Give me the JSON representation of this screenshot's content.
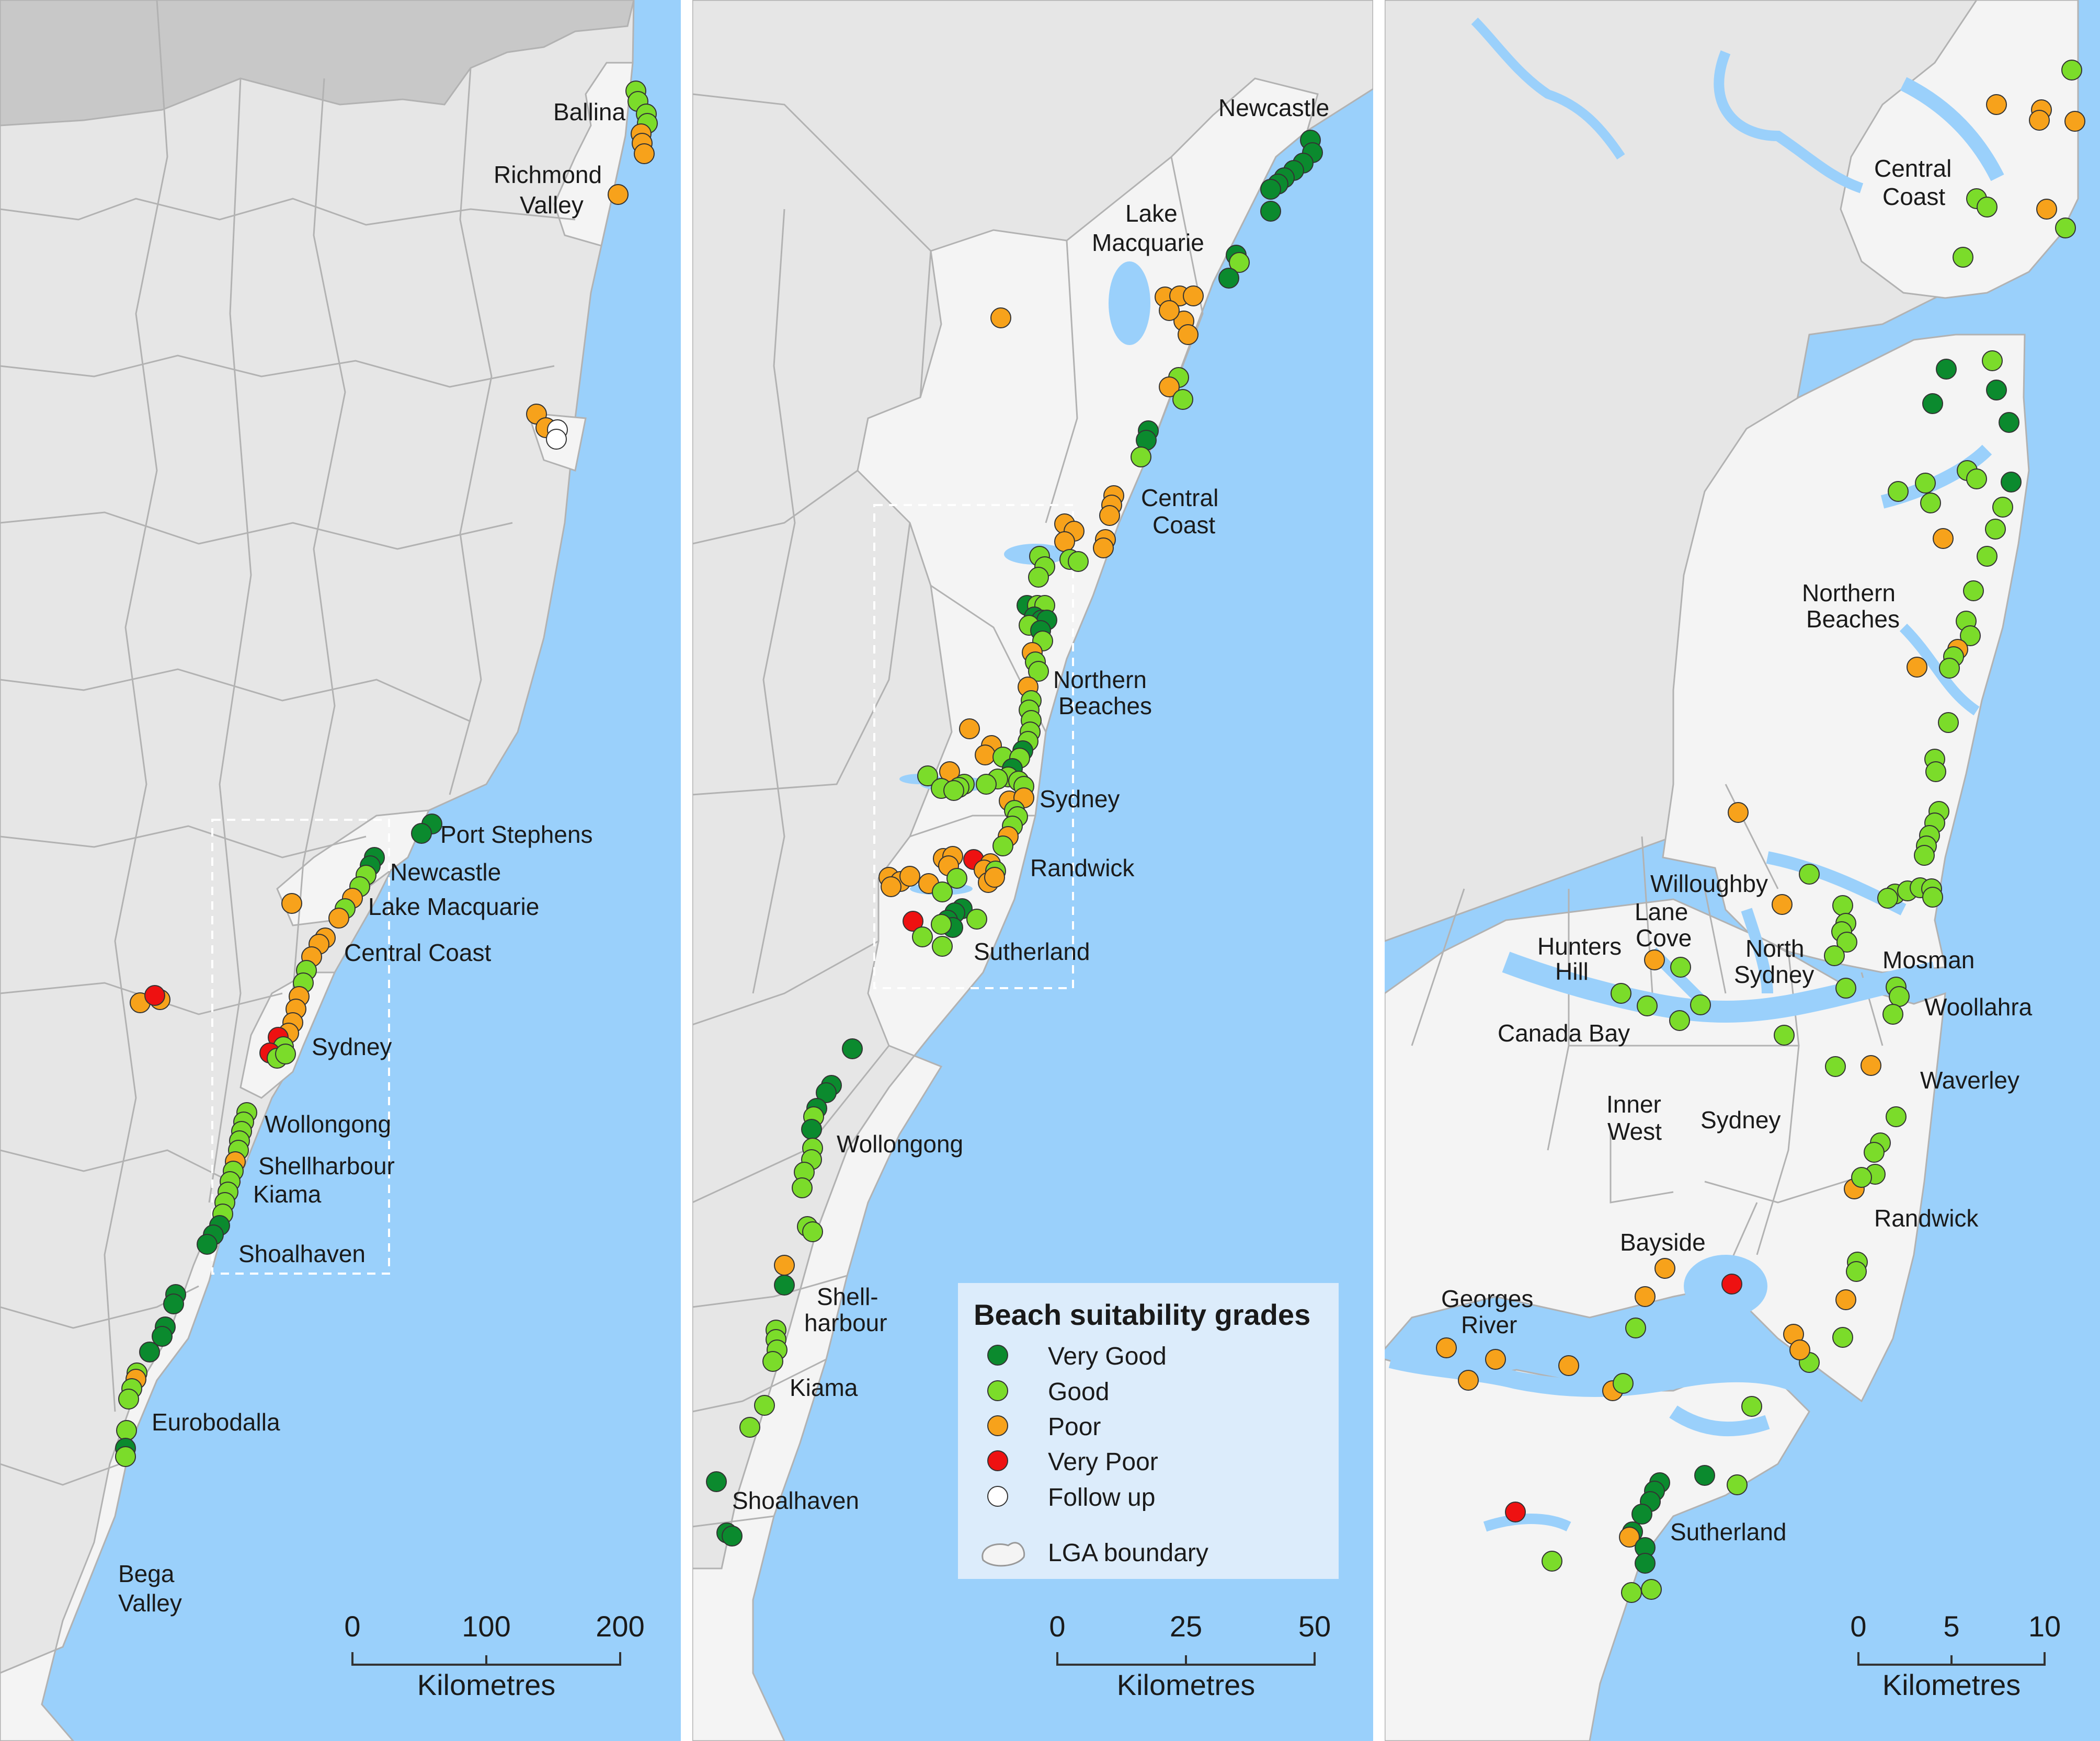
{
  "colors": {
    "sea": "#9ad0fb",
    "land_inland": "#e6e6e6",
    "land_coastal_lga": "#f4f4f4",
    "out_of_state": "#c8c8c8",
    "boundary": "#b2b2b2",
    "very_good": "#0b8a2e",
    "good": "#7bdc2a",
    "poor": "#f7a21b",
    "very_poor": "#ee1111",
    "follow_up": "#ffffff",
    "legend_bg": "#dcecfb"
  },
  "legend": {
    "title": "Beach suitability grades",
    "items": [
      {
        "label": "Very Good",
        "grade": "very_good"
      },
      {
        "label": "Good",
        "grade": "good"
      },
      {
        "label": "Poor",
        "grade": "poor"
      },
      {
        "label": "Very Poor",
        "grade": "very_poor"
      },
      {
        "label": "Follow up",
        "grade": "follow_up"
      }
    ],
    "boundary_label": "LGA boundary"
  },
  "panels": [
    {
      "name": "nsw-coast-panel",
      "labels": [
        "Ballina",
        "Richmond",
        "Valley",
        "Port Stephens",
        "Newcastle",
        "Lake Macquarie",
        "Central Coast",
        "Sydney",
        "Wollongong",
        "Shellharbour",
        "Kiama",
        "Shoalhaven",
        "Eurobodalla",
        "Bega",
        "Valley"
      ],
      "scale": {
        "ticks": [
          "0",
          "100",
          "200"
        ],
        "unit": "Kilometres"
      }
    },
    {
      "name": "hunter-to-shoalhaven-panel",
      "labels": [
        "Newcastle",
        "Lake",
        "Macquarie",
        "Central",
        "Coast",
        "Northern",
        "Beaches",
        "Sydney",
        "Randwick",
        "Sutherland",
        "Wollongong",
        "Shell-",
        "harbour",
        "Kiama",
        "Shoalhaven"
      ],
      "scale": {
        "ticks": [
          "0",
          "25",
          "50"
        ],
        "unit": "Kilometres"
      }
    },
    {
      "name": "sydney-panel",
      "labels": [
        "Central",
        "Coast",
        "Northern",
        "Beaches",
        "Willoughby",
        "Lane",
        "Cove",
        "Hunters",
        "Hill",
        "North",
        "Sydney",
        "Mosman",
        "Woollahra",
        "Canada Bay",
        "Inner",
        "West",
        "Sydney",
        "Waverley",
        "Randwick",
        "Bayside",
        "Georges",
        "River",
        "Sutherland"
      ],
      "scale": {
        "ticks": [
          "0",
          "5",
          "10"
        ],
        "unit": "Kilometres"
      }
    }
  ]
}
